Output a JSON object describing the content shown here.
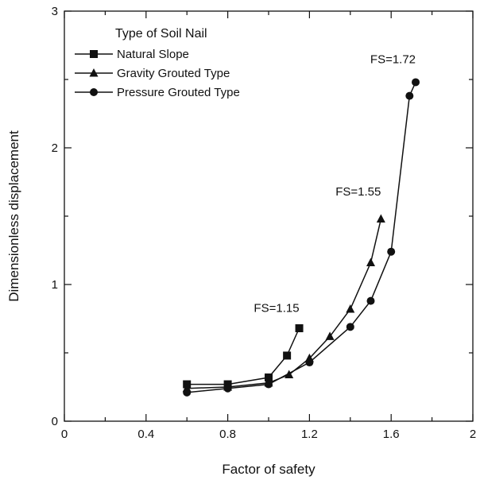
{
  "chart_data": {
    "type": "line",
    "title": "",
    "xlabel": "Factor of safety",
    "ylabel": "Dimensionless displacement",
    "xlim": [
      0,
      2
    ],
    "ylim": [
      0,
      3
    ],
    "x_ticks": [
      "0",
      "0.4",
      "0.8",
      "1.2",
      "1.6",
      "2"
    ],
    "y_ticks": [
      "0",
      "1",
      "2",
      "3"
    ],
    "grid": false,
    "legend": {
      "title": "Type of Soil Nail",
      "placement": "top-left"
    },
    "series": [
      {
        "name": "Natural Slope",
        "marker": "square",
        "x": [
          0.6,
          0.8,
          1.0,
          1.09,
          1.15
        ],
        "y": [
          0.27,
          0.27,
          0.32,
          0.48,
          0.68
        ]
      },
      {
        "name": "Gravity Grouted Type",
        "marker": "triangle",
        "x": [
          0.6,
          0.8,
          1.0,
          1.1,
          1.2,
          1.3,
          1.4,
          1.5,
          1.55
        ],
        "y": [
          0.24,
          0.25,
          0.28,
          0.34,
          0.46,
          0.62,
          0.82,
          1.16,
          1.48
        ]
      },
      {
        "name": "Pressure Grouted Type",
        "marker": "circle",
        "x": [
          0.6,
          0.8,
          1.0,
          1.2,
          1.4,
          1.5,
          1.6,
          1.69,
          1.72
        ],
        "y": [
          0.21,
          0.24,
          0.27,
          0.43,
          0.69,
          0.88,
          1.24,
          2.38,
          2.48
        ]
      }
    ],
    "annotations": [
      {
        "text": "FS=1.15",
        "x": 1.15,
        "y": 0.8
      },
      {
        "text": "FS=1.55",
        "x": 1.55,
        "y": 1.65
      },
      {
        "text": "FS=1.72",
        "x": 1.72,
        "y": 2.62
      }
    ]
  }
}
